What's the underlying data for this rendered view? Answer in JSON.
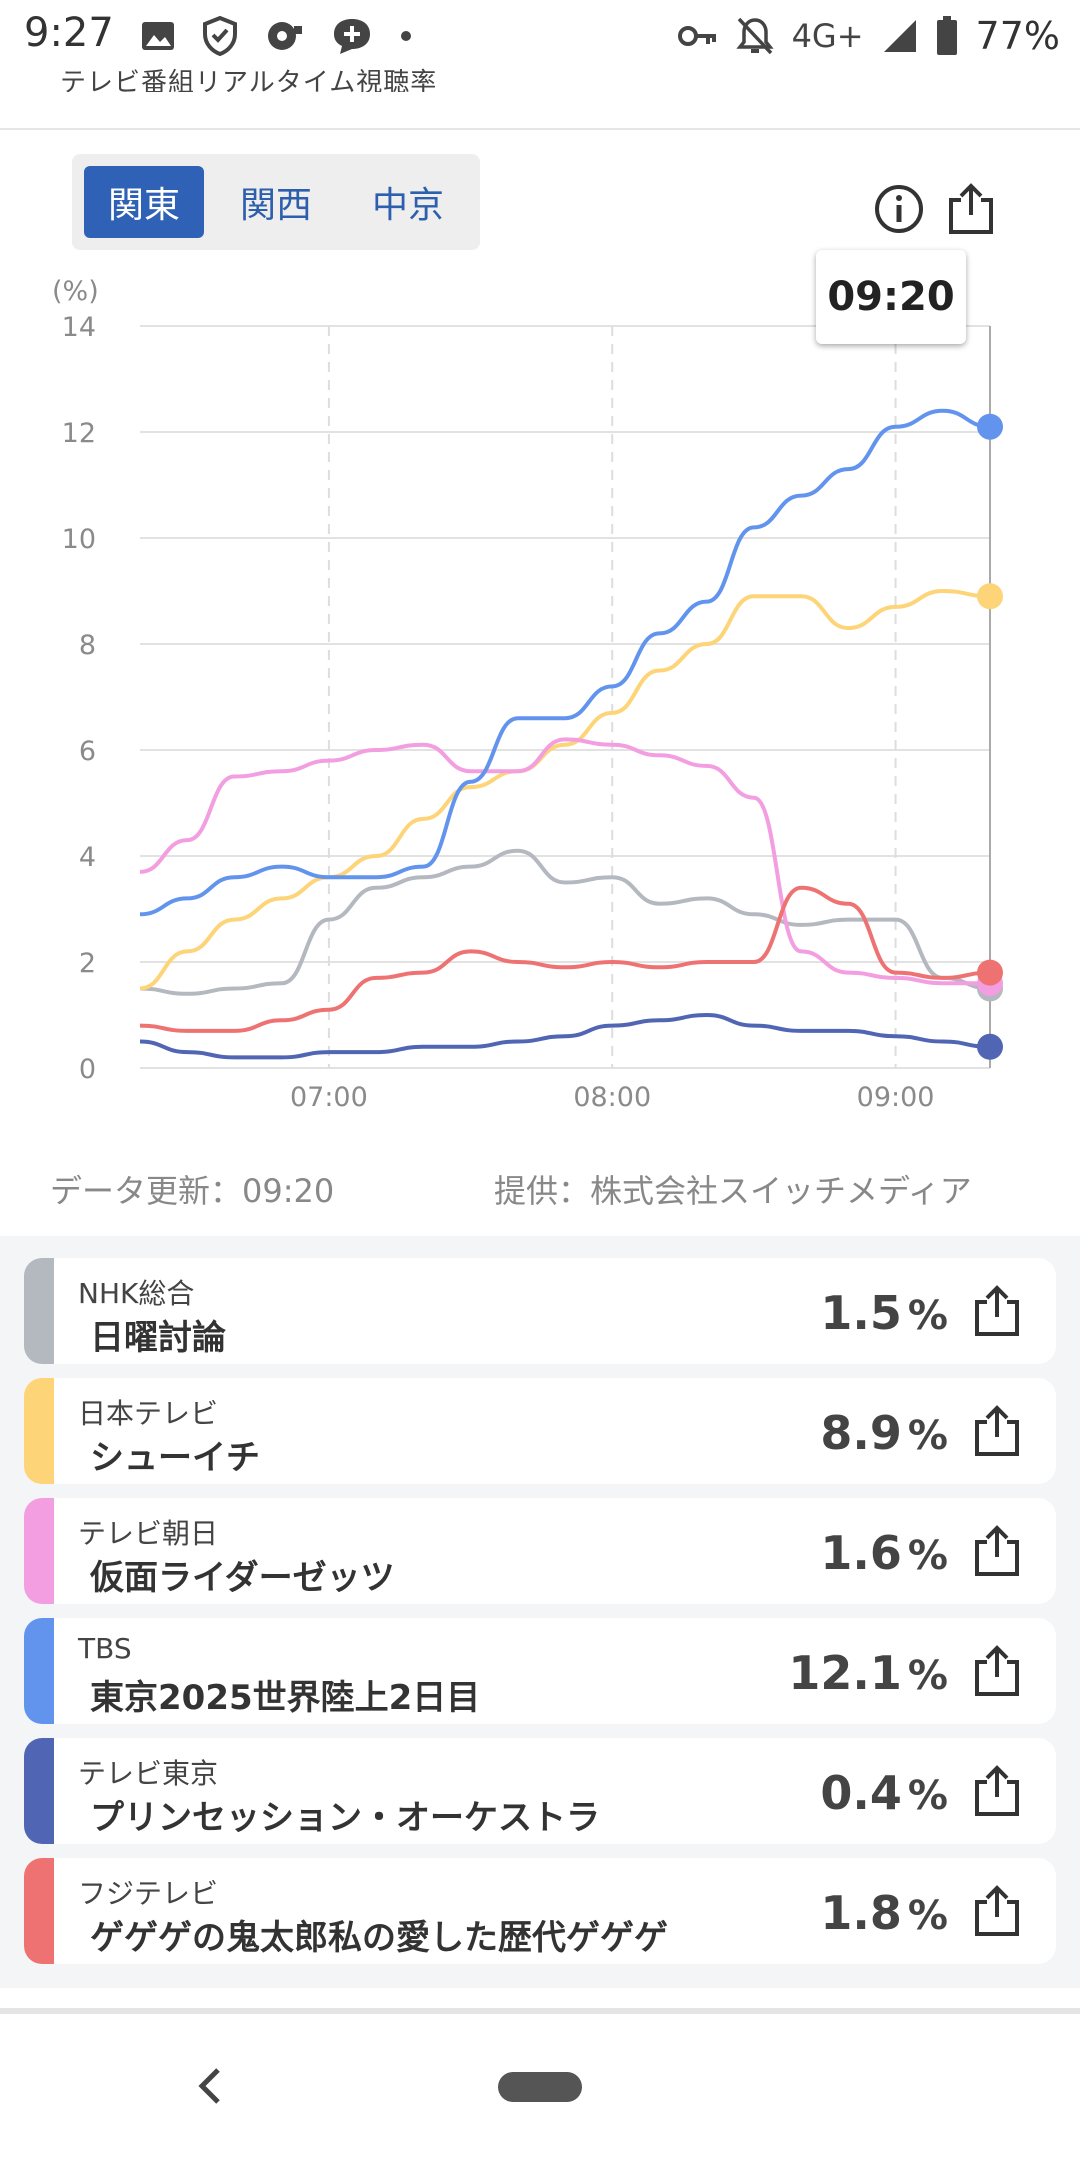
{
  "status_bar": {
    "time": "9:27",
    "network": "4G+",
    "battery": "77%",
    "left_icons": [
      "image-icon",
      "shield-icon",
      "sync-icon",
      "chat-plus-icon",
      "dot-icon"
    ],
    "right_icons": [
      "key-icon",
      "bell-off-icon",
      "signal-icon",
      "battery-icon"
    ]
  },
  "app": {
    "title": "テレビ番組リアルタイム視聴率"
  },
  "regions": {
    "tabs": [
      {
        "label": "関東",
        "active": true
      },
      {
        "label": "関西",
        "active": false
      },
      {
        "label": "中京",
        "active": false
      }
    ]
  },
  "toolbar": {
    "info_icon": "info-icon",
    "share_icon": "share-icon"
  },
  "tooltip": {
    "time": "09:20"
  },
  "chart_footer": {
    "updated": "データ更新：09:20",
    "provider": "提供：株式会社スイッチメディア"
  },
  "channels": [
    {
      "channel": "NHK総合",
      "program": "日曜討論",
      "rating": "1.5",
      "unit": "%",
      "color": "#b4b8bf"
    },
    {
      "channel": "日本テレビ",
      "program": "シューイチ",
      "rating": "8.9",
      "unit": "%",
      "color": "#fdd478"
    },
    {
      "channel": "テレビ朝日",
      "program": "仮面ライダーゼッツ",
      "rating": "1.6",
      "unit": "%",
      "color": "#f29ee0"
    },
    {
      "channel": "TBS",
      "program": "東京2025世界陸上2日目",
      "rating": "12.1",
      "unit": "%",
      "color": "#6294ee"
    },
    {
      "channel": "テレビ東京",
      "program": "プリンセッション・オーケストラ",
      "rating": "0.4",
      "unit": "%",
      "color": "#5066b4"
    },
    {
      "channel": "フジテレビ",
      "program": "ゲゲゲの鬼太郎私の愛した歴代ゲゲゲ",
      "rating": "1.8",
      "unit": "%",
      "color": "#ef7273"
    }
  ],
  "chart_data": {
    "type": "line",
    "ylabel": "(%)",
    "ylim": [
      0,
      14
    ],
    "yticks": [
      0,
      2,
      4,
      6,
      8,
      10,
      12,
      14
    ],
    "x_range": [
      "06:20",
      "09:20"
    ],
    "xticks": [
      "07:00",
      "08:00",
      "09:00"
    ],
    "grid": true,
    "x": [
      "06:20",
      "06:30",
      "06:40",
      "06:50",
      "07:00",
      "07:10",
      "07:20",
      "07:30",
      "07:40",
      "07:50",
      "08:00",
      "08:10",
      "08:20",
      "08:30",
      "08:40",
      "08:50",
      "09:00",
      "09:10",
      "09:20"
    ],
    "series": [
      {
        "name": "NHK総合",
        "color": "#b4b8bf",
        "values": [
          1.5,
          1.4,
          1.5,
          1.6,
          2.8,
          3.4,
          3.6,
          3.8,
          4.1,
          3.5,
          3.6,
          3.1,
          3.2,
          2.9,
          2.7,
          2.8,
          2.8,
          1.7,
          1.5
        ]
      },
      {
        "name": "日本テレビ",
        "color": "#fdd478",
        "values": [
          1.5,
          2.2,
          2.8,
          3.2,
          3.6,
          4.0,
          4.7,
          5.3,
          5.6,
          6.1,
          6.7,
          7.5,
          8.0,
          8.9,
          8.9,
          8.3,
          8.7,
          9.0,
          8.9
        ]
      },
      {
        "name": "テレビ朝日",
        "color": "#f29ee0",
        "values": [
          3.7,
          4.3,
          5.5,
          5.6,
          5.8,
          6.0,
          6.1,
          5.6,
          5.6,
          6.2,
          6.1,
          5.9,
          5.7,
          5.1,
          2.2,
          1.8,
          1.7,
          1.6,
          1.6
        ]
      },
      {
        "name": "TBS",
        "color": "#6294ee",
        "values": [
          2.9,
          3.2,
          3.6,
          3.8,
          3.6,
          3.6,
          3.8,
          5.4,
          6.6,
          6.6,
          7.2,
          8.2,
          8.8,
          10.2,
          10.8,
          11.3,
          12.1,
          12.4,
          12.1
        ]
      },
      {
        "name": "テレビ東京",
        "color": "#5066b4",
        "values": [
          0.5,
          0.3,
          0.2,
          0.2,
          0.3,
          0.3,
          0.4,
          0.4,
          0.5,
          0.6,
          0.8,
          0.9,
          1.0,
          0.8,
          0.7,
          0.7,
          0.6,
          0.5,
          0.4
        ]
      },
      {
        "name": "フジテレビ",
        "color": "#ef7273",
        "values": [
          0.8,
          0.7,
          0.7,
          0.9,
          1.1,
          1.7,
          1.8,
          2.2,
          2.0,
          1.9,
          2.0,
          1.9,
          2.0,
          2.0,
          3.4,
          3.1,
          1.8,
          1.7,
          1.8
        ]
      }
    ]
  }
}
